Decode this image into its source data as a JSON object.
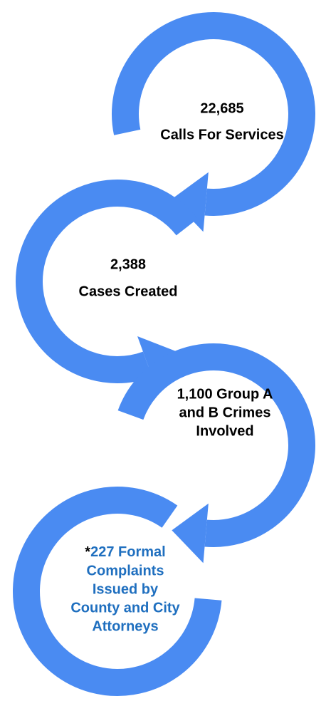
{
  "nodes": [
    {
      "lines": [
        "22,685",
        "Calls For Services"
      ]
    },
    {
      "lines": [
        "2,388",
        "Cases Created"
      ]
    },
    {
      "lines": [
        "1,100 Group A",
        "and B Crimes",
        "Involved"
      ]
    },
    {
      "marker": "*",
      "lines": [
        "227 Formal",
        "Complaints",
        "Issued by",
        "County and City",
        "Attorneys"
      ]
    }
  ]
}
